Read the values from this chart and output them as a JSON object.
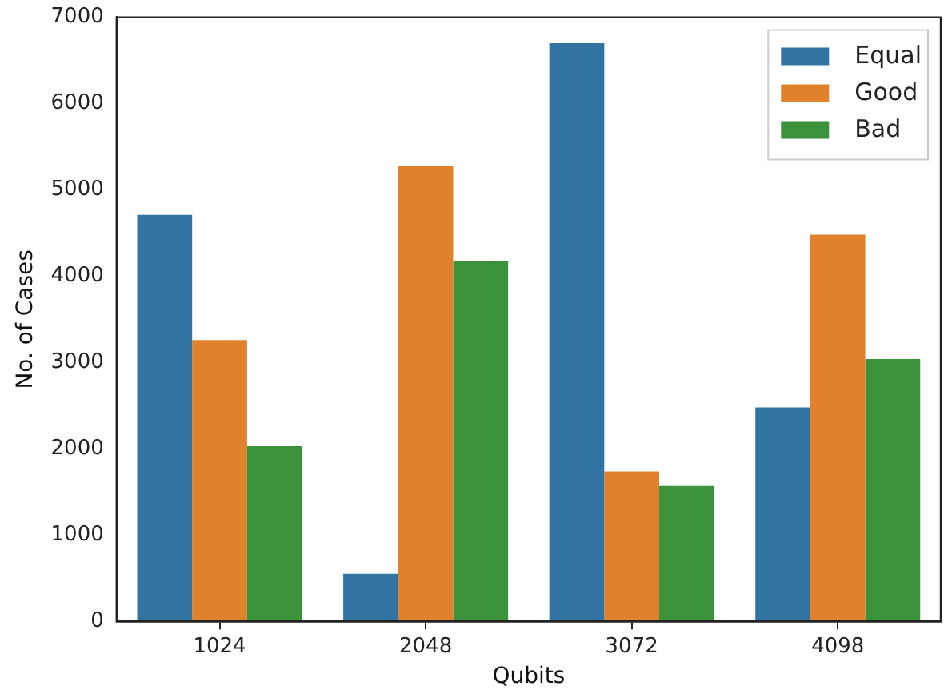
{
  "chart_data": {
    "type": "bar",
    "xlabel": "Qubits",
    "ylabel": "No. of Cases",
    "categories": [
      "1024",
      "2048",
      "3072",
      "4098"
    ],
    "series": [
      {
        "name": "Equal",
        "color": "#3274a1",
        "values": [
          4710,
          550,
          6700,
          2480
        ]
      },
      {
        "name": "Good",
        "color": "#e1812c",
        "values": [
          3260,
          5280,
          1740,
          4480
        ]
      },
      {
        "name": "Bad",
        "color": "#3a923a",
        "values": [
          2030,
          4180,
          1570,
          3040
        ]
      }
    ],
    "ylim": [
      0,
      7000
    ],
    "yticks": [
      0,
      1000,
      2000,
      3000,
      4000,
      5000,
      6000,
      7000
    ],
    "grid": false,
    "legend": "top right"
  }
}
